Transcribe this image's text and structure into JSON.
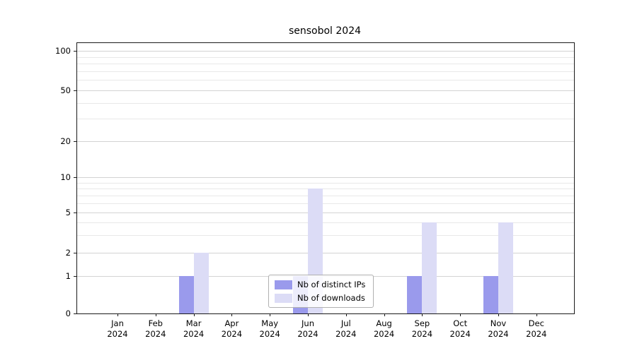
{
  "title": "sensobol 2024",
  "chart_data": {
    "type": "bar",
    "title": "sensobol 2024",
    "x": [
      "Jan",
      "Feb",
      "Mar",
      "Apr",
      "May",
      "Jun",
      "Jul",
      "Aug",
      "Sep",
      "Oct",
      "Nov",
      "Dec"
    ],
    "year": "2024",
    "series": [
      {
        "name": "Nb of distinct IPs",
        "color": "#9a9aec",
        "values": [
          0,
          0,
          1,
          0,
          0,
          1,
          0,
          0,
          1,
          0,
          1,
          0
        ]
      },
      {
        "name": "Nb of downloads",
        "color": "#dcdcf6",
        "values": [
          0,
          0,
          2,
          0,
          0,
          8,
          0,
          0,
          4,
          0,
          4,
          0
        ]
      }
    ],
    "y_axis": {
      "ticks": [
        0,
        1,
        2,
        5,
        10,
        20,
        50,
        100
      ],
      "minor_gridlines": [
        3,
        4,
        6,
        7,
        8,
        9,
        30,
        40,
        60,
        70,
        80,
        90
      ],
      "scale": "log above 1, linear 0-1"
    },
    "grid": true,
    "legend_position": "lower center inside plot"
  }
}
